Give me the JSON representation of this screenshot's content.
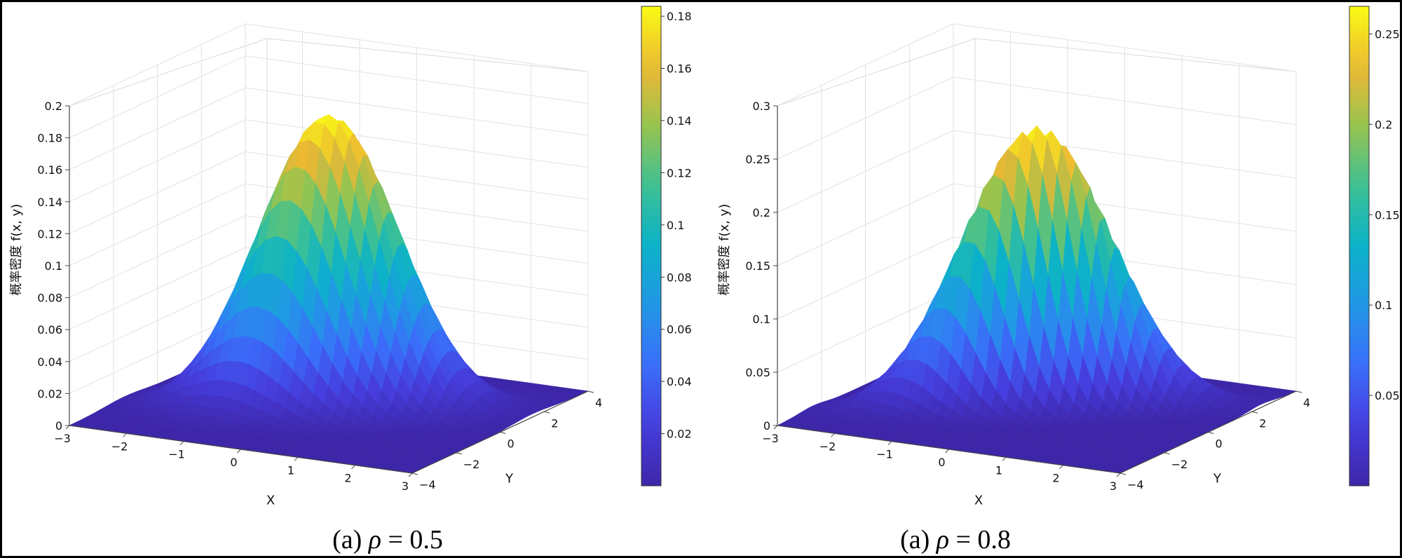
{
  "chart_data": [
    {
      "type": "surface",
      "title": "",
      "caption_prefix": "(a) ",
      "caption_symbol": "ρ",
      "caption_value": "= 0.5",
      "rho": 0.5,
      "xlabel": "X",
      "ylabel": "Y",
      "zlabel": "概率密度  f(x, y)",
      "xlim": [
        -3,
        3
      ],
      "ylim": [
        -4,
        4
      ],
      "zlim": [
        0,
        0.2
      ],
      "x_ticks": [
        "-3",
        "-2",
        "-1",
        "0",
        "1",
        "2",
        "3"
      ],
      "y_ticks": [
        "-4",
        "-2",
        "0",
        "2",
        "4"
      ],
      "z_ticks": [
        "0",
        "0.02",
        "0.04",
        "0.06",
        "0.08",
        "0.1",
        "0.12",
        "0.14",
        "0.16",
        "0.18",
        "0.2"
      ],
      "peak_value": 0.1838,
      "colorbar_range": [
        0,
        0.1838
      ],
      "colorbar_ticks": [
        "0.02",
        "0.04",
        "0.06",
        "0.08",
        "0.1",
        "0.12",
        "0.14",
        "0.16",
        "0.18"
      ],
      "colormap": "parula",
      "grid": true
    },
    {
      "type": "surface",
      "title": "",
      "caption_prefix": "(a) ",
      "caption_symbol": "ρ",
      "caption_value": "= 0.8",
      "rho": 0.8,
      "xlabel": "X",
      "ylabel": "Y",
      "zlabel": "概率密度  f(x, y)",
      "xlim": [
        -3,
        3
      ],
      "ylim": [
        -4,
        4
      ],
      "zlim": [
        0,
        0.3
      ],
      "x_ticks": [
        "-3",
        "-2",
        "-1",
        "0",
        "1",
        "2",
        "3"
      ],
      "y_ticks": [
        "-4",
        "-2",
        "0",
        "2",
        "4"
      ],
      "z_ticks": [
        "0",
        "0.05",
        "0.1",
        "0.15",
        "0.2",
        "0.25",
        "0.3"
      ],
      "peak_value": 0.2653,
      "colorbar_range": [
        0,
        0.2653
      ],
      "colorbar_ticks": [
        "0.05",
        "0.1",
        "0.15",
        "0.2",
        "0.25"
      ],
      "colormap": "parula",
      "grid": true
    }
  ]
}
